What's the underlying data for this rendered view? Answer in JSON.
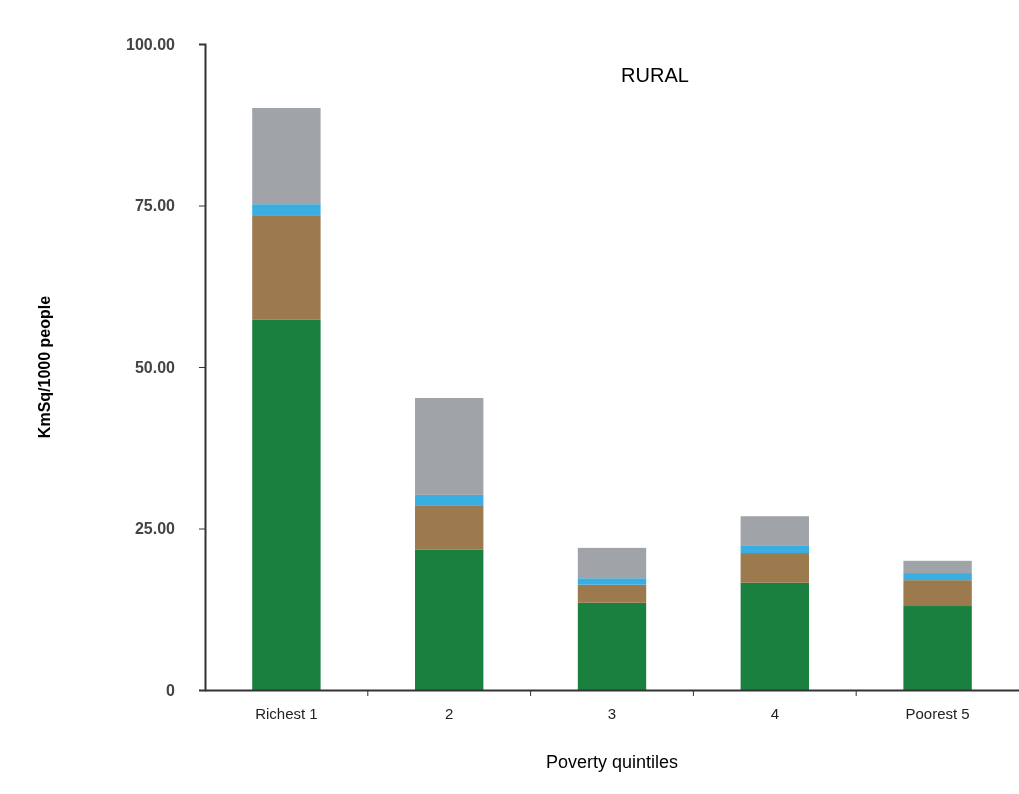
{
  "chart_data": {
    "type": "bar",
    "title": "RURAL",
    "xlabel": "Poverty quintiles",
    "ylabel": "KmSq/1000 people",
    "categories": [
      "Richest 1",
      "2",
      "3",
      "4",
      "Poorest 5"
    ],
    "stacked": true,
    "series": [
      {
        "color": "#1a8040",
        "values": [
          57.3,
          21.7,
          13.5,
          16.6,
          13
        ]
      },
      {
        "color": "#9c7a4e",
        "values": [
          16.2,
          6.9,
          2.8,
          4.6,
          4
        ]
      },
      {
        "color": "#3aaee0",
        "values": [
          1.7,
          1.6,
          1.0,
          1.1,
          1.1
        ]
      },
      {
        "color": "#a0a4a8",
        "values": [
          14.9,
          15.0,
          4.7,
          4.6,
          1.9
        ]
      }
    ],
    "ylim": [
      0,
      100
    ],
    "yticks": [
      {
        "value": 0,
        "label": "0"
      },
      {
        "value": 25,
        "label": "25.00"
      },
      {
        "value": 50,
        "label": "50.00"
      },
      {
        "value": 75,
        "label": "75.00"
      },
      {
        "value": 100,
        "label": "100.00"
      }
    ],
    "grid": false
  }
}
